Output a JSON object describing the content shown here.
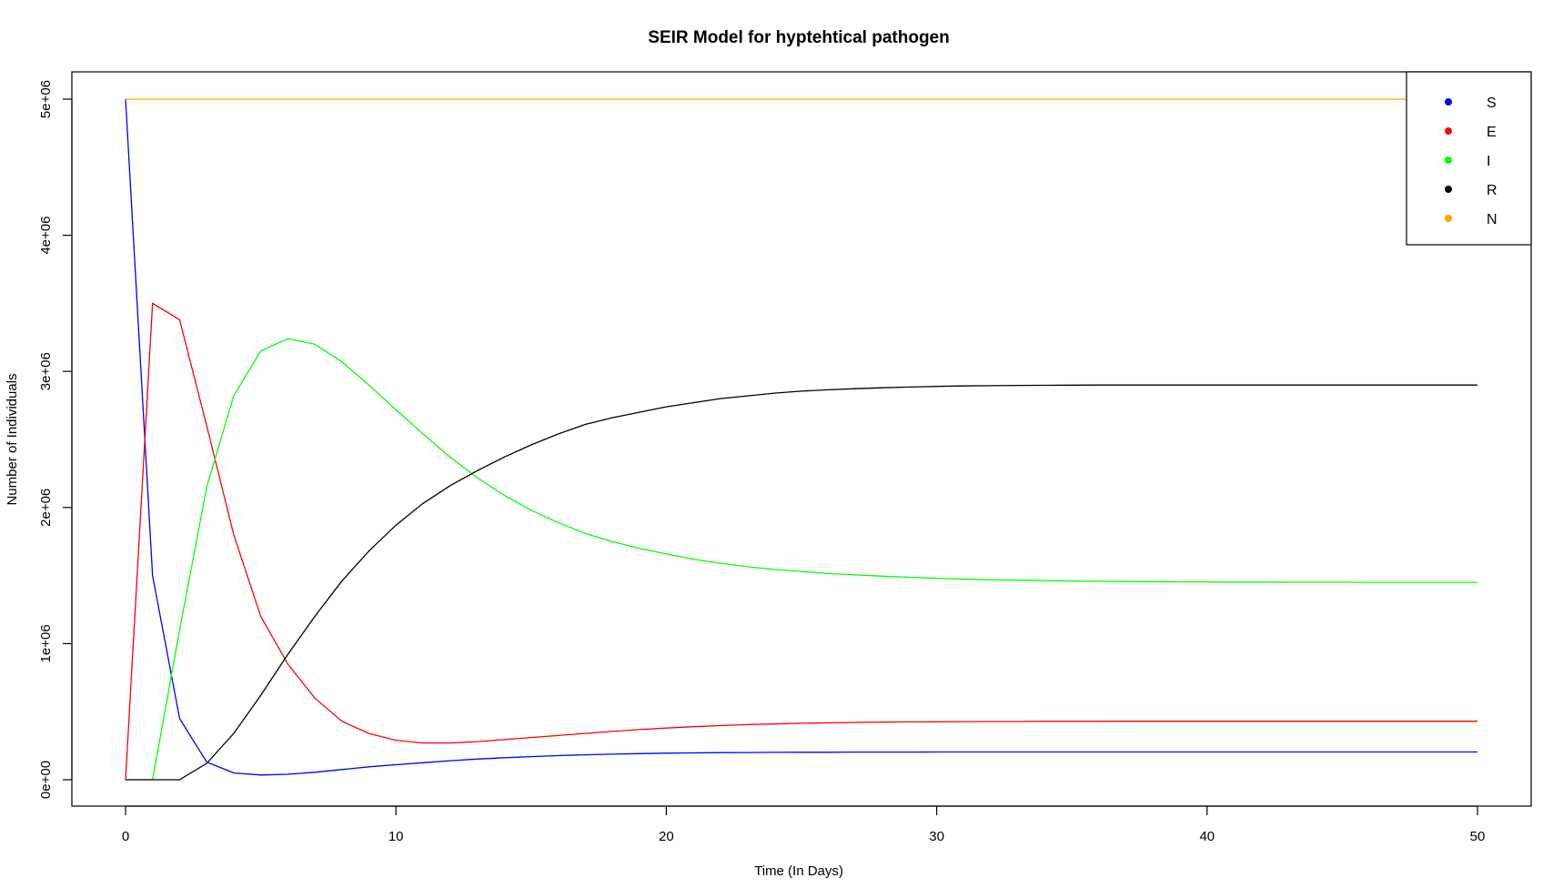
{
  "chart_data": {
    "type": "line",
    "title": "SEIR Model for hyptehtical pathogen",
    "xlabel": "Time (In Days)",
    "ylabel": "Number of Individuals",
    "xlim": [
      0,
      50
    ],
    "ylim": [
      0,
      5000000
    ],
    "x_ticks": [
      0,
      10,
      20,
      30,
      40,
      50
    ],
    "x_tick_labels": [
      "0",
      "10",
      "20",
      "30",
      "40",
      "50"
    ],
    "y_ticks": [
      0,
      1000000,
      2000000,
      3000000,
      4000000,
      5000000
    ],
    "y_tick_labels": [
      "0e+00",
      "1e+06",
      "2e+06",
      "3e+06",
      "4e+06",
      "5e+06"
    ],
    "legend_position": "top-right",
    "grid": false,
    "x": [
      0,
      1,
      2,
      3,
      4,
      5,
      6,
      7,
      8,
      9,
      10,
      11,
      12,
      13,
      14,
      15,
      16,
      17,
      18,
      19,
      20,
      21,
      22,
      23,
      24,
      25,
      26,
      27,
      28,
      29,
      30,
      31,
      32,
      33,
      34,
      35,
      36,
      37,
      38,
      39,
      40,
      41,
      42,
      43,
      44,
      45,
      46,
      47,
      48,
      49,
      50
    ],
    "series": [
      {
        "name": "S",
        "color": "#0000ff",
        "values": [
          5000000,
          1500000,
          450000,
          130000,
          50000,
          35000,
          40000,
          55000,
          75000,
          95000,
          110000,
          125000,
          140000,
          152000,
          162000,
          170000,
          177000,
          183000,
          188000,
          192000,
          195000,
          197000,
          199000,
          200000,
          201000,
          202000,
          202000,
          203000,
          203000,
          203000,
          204000,
          204000,
          204000,
          204000,
          204000,
          204000,
          204000,
          204000,
          204000,
          204000,
          204000,
          204000,
          204000,
          204000,
          204000,
          204000,
          204000,
          204000,
          204000,
          204000,
          204000
        ]
      },
      {
        "name": "E",
        "color": "#ff0000",
        "values": [
          0,
          3500000,
          3380000,
          2600000,
          1800000,
          1200000,
          850000,
          600000,
          430000,
          340000,
          290000,
          270000,
          270000,
          280000,
          295000,
          310000,
          325000,
          340000,
          355000,
          368000,
          380000,
          390000,
          398000,
          405000,
          410000,
          415000,
          418000,
          421000,
          423000,
          425000,
          426000,
          427000,
          428000,
          428000,
          429000,
          429000,
          429000,
          430000,
          430000,
          430000,
          430000,
          430000,
          430000,
          430000,
          430000,
          430000,
          430000,
          430000,
          430000,
          430000,
          430000
        ]
      },
      {
        "name": "I",
        "color": "#00ff00",
        "values": [
          0,
          0,
          1100000,
          2150000,
          2820000,
          3150000,
          3240000,
          3200000,
          3070000,
          2900000,
          2720000,
          2540000,
          2370000,
          2220000,
          2090000,
          1980000,
          1890000,
          1810000,
          1750000,
          1700000,
          1660000,
          1620000,
          1590000,
          1565000,
          1545000,
          1530000,
          1515000,
          1505000,
          1495000,
          1488000,
          1480000,
          1474000,
          1470000,
          1466000,
          1463000,
          1460000,
          1458000,
          1456000,
          1455000,
          1454000,
          1453000,
          1452000,
          1452000,
          1451000,
          1451000,
          1451000,
          1450000,
          1450000,
          1450000,
          1450000,
          1450000
        ]
      },
      {
        "name": "R",
        "color": "#000000",
        "values": [
          0,
          0,
          0,
          120000,
          340000,
          620000,
          920000,
          1200000,
          1460000,
          1680000,
          1870000,
          2030000,
          2160000,
          2270000,
          2370000,
          2460000,
          2540000,
          2610000,
          2660000,
          2700000,
          2740000,
          2770000,
          2800000,
          2820000,
          2840000,
          2855000,
          2865000,
          2873000,
          2880000,
          2885000,
          2890000,
          2893000,
          2895000,
          2897000,
          2898000,
          2899000,
          2900000,
          2900000,
          2900000,
          2900000,
          2900000,
          2900000,
          2900000,
          2900000,
          2900000,
          2900000,
          2900000,
          2900000,
          2900000,
          2900000,
          2900000
        ]
      },
      {
        "name": "N",
        "color": "#ffa500",
        "values": [
          5000000,
          5000000,
          5000000,
          5000000,
          5000000,
          5000000,
          5000000,
          5000000,
          5000000,
          5000000,
          5000000,
          5000000,
          5000000,
          5000000,
          5000000,
          5000000,
          5000000,
          5000000,
          5000000,
          5000000,
          5000000,
          5000000,
          5000000,
          5000000,
          5000000,
          5000000,
          5000000,
          5000000,
          5000000,
          5000000,
          5000000,
          5000000,
          5000000,
          5000000,
          5000000,
          5000000,
          5000000,
          5000000,
          5000000,
          5000000,
          5000000,
          5000000,
          5000000,
          5000000,
          5000000,
          5000000,
          5000000,
          5000000,
          5000000,
          5000000,
          5000000
        ]
      }
    ]
  }
}
